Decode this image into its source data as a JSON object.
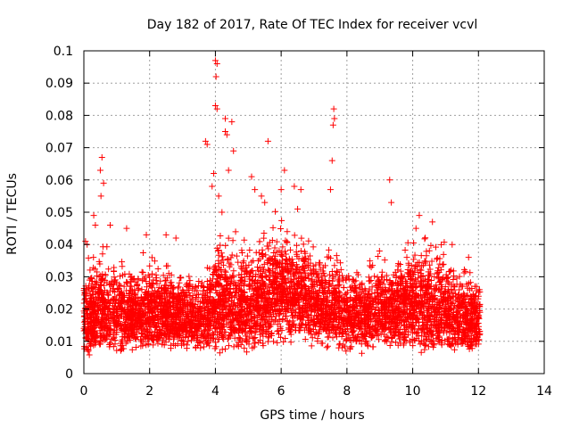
{
  "chart_data": {
    "type": "scatter",
    "title": "Day 182 of 2017, Rate Of TEC Index for receiver vcvl",
    "xlabel": "GPS time / hours",
    "ylabel": "ROTI / TECUs",
    "xlim": [
      0,
      14
    ],
    "ylim": [
      0,
      0.1
    ],
    "x_ticks": [
      "0",
      "2",
      "4",
      "6",
      "8",
      "10",
      "12",
      "14"
    ],
    "y_ticks": [
      "0",
      "0.01",
      "0.02",
      "0.03",
      "0.04",
      "0.05",
      "0.06",
      "0.07",
      "0.08",
      "0.09",
      "0.1"
    ],
    "grid": true,
    "marker": "+",
    "series_color": "#ff0000",
    "notable_points": [
      {
        "x": 0.05,
        "y": 0.041
      },
      {
        "x": 0.1,
        "y": 0.04
      },
      {
        "x": 0.3,
        "y": 0.049
      },
      {
        "x": 0.35,
        "y": 0.046
      },
      {
        "x": 0.55,
        "y": 0.067
      },
      {
        "x": 0.5,
        "y": 0.063
      },
      {
        "x": 0.6,
        "y": 0.059
      },
      {
        "x": 0.52,
        "y": 0.055
      },
      {
        "x": 0.8,
        "y": 0.046
      },
      {
        "x": 1.3,
        "y": 0.045
      },
      {
        "x": 1.9,
        "y": 0.043
      },
      {
        "x": 2.5,
        "y": 0.043
      },
      {
        "x": 2.8,
        "y": 0.042
      },
      {
        "x": 3.7,
        "y": 0.072
      },
      {
        "x": 3.75,
        "y": 0.071
      },
      {
        "x": 3.95,
        "y": 0.062
      },
      {
        "x": 4.0,
        "y": 0.097
      },
      {
        "x": 4.05,
        "y": 0.096
      },
      {
        "x": 4.02,
        "y": 0.092
      },
      {
        "x": 4.0,
        "y": 0.083
      },
      {
        "x": 4.05,
        "y": 0.082
      },
      {
        "x": 4.3,
        "y": 0.079
      },
      {
        "x": 4.3,
        "y": 0.075
      },
      {
        "x": 4.35,
        "y": 0.074
      },
      {
        "x": 4.5,
        "y": 0.078
      },
      {
        "x": 4.55,
        "y": 0.069
      },
      {
        "x": 4.4,
        "y": 0.063
      },
      {
        "x": 3.9,
        "y": 0.058
      },
      {
        "x": 4.1,
        "y": 0.055
      },
      {
        "x": 4.2,
        "y": 0.05
      },
      {
        "x": 5.1,
        "y": 0.061
      },
      {
        "x": 5.2,
        "y": 0.057
      },
      {
        "x": 5.4,
        "y": 0.055
      },
      {
        "x": 5.6,
        "y": 0.072
      },
      {
        "x": 5.5,
        "y": 0.053
      },
      {
        "x": 6.1,
        "y": 0.063
      },
      {
        "x": 6.0,
        "y": 0.057
      },
      {
        "x": 6.4,
        "y": 0.058
      },
      {
        "x": 6.6,
        "y": 0.057
      },
      {
        "x": 6.5,
        "y": 0.051
      },
      {
        "x": 7.6,
        "y": 0.082
      },
      {
        "x": 7.62,
        "y": 0.079
      },
      {
        "x": 7.58,
        "y": 0.077
      },
      {
        "x": 7.55,
        "y": 0.066
      },
      {
        "x": 7.5,
        "y": 0.057
      },
      {
        "x": 9.3,
        "y": 0.06
      },
      {
        "x": 9.35,
        "y": 0.053
      },
      {
        "x": 10.2,
        "y": 0.049
      },
      {
        "x": 10.6,
        "y": 0.047
      },
      {
        "x": 10.1,
        "y": 0.045
      },
      {
        "x": 11.2,
        "y": 0.04
      },
      {
        "x": 11.7,
        "y": 0.036
      }
    ],
    "bulk_density_envelope": {
      "x": [
        0,
        0.5,
        1,
        1.5,
        2,
        2.5,
        3,
        3.5,
        4,
        4.5,
        5,
        5.5,
        6,
        6.5,
        7,
        7.5,
        8,
        8.5,
        9,
        9.5,
        10,
        10.5,
        11,
        11.5,
        12.05
      ],
      "low": [
        0.005,
        0.004,
        0.005,
        0.006,
        0.005,
        0.006,
        0.007,
        0.006,
        0.006,
        0.006,
        0.006,
        0.007,
        0.008,
        0.009,
        0.008,
        0.007,
        0.006,
        0.006,
        0.007,
        0.007,
        0.006,
        0.005,
        0.005,
        0.005,
        0.006
      ],
      "high": [
        0.034,
        0.04,
        0.036,
        0.034,
        0.036,
        0.036,
        0.032,
        0.03,
        0.042,
        0.044,
        0.04,
        0.046,
        0.048,
        0.046,
        0.04,
        0.04,
        0.036,
        0.034,
        0.036,
        0.04,
        0.042,
        0.044,
        0.04,
        0.034,
        0.03
      ]
    }
  }
}
